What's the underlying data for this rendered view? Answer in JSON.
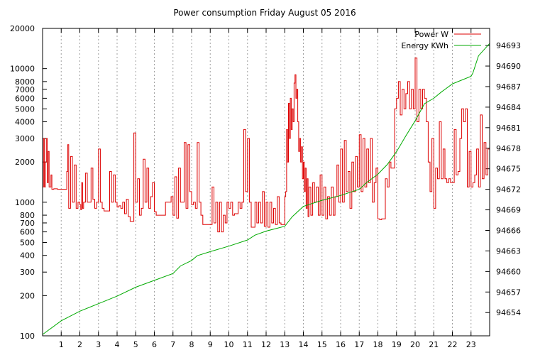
{
  "chart_data": {
    "type": "line",
    "title": "Power consumption Friday August 05 2016",
    "xlabel": "",
    "ylabel": "",
    "y2label": "",
    "grid": true,
    "legend_placement": "top-right",
    "x_range": [
      0,
      24
    ],
    "x_ticks": [
      1,
      2,
      3,
      4,
      5,
      6,
      7,
      8,
      9,
      10,
      11,
      12,
      13,
      14,
      15,
      16,
      17,
      18,
      19,
      20,
      21,
      22,
      23
    ],
    "y_left": {
      "scale": "log",
      "range": [
        100,
        20000
      ],
      "ticks": [
        100,
        200,
        300,
        400,
        500,
        600,
        700,
        800,
        1000,
        2000,
        3000,
        4000,
        5000,
        6000,
        7000,
        8000,
        10000,
        20000
      ]
    },
    "y_right": {
      "scale": "linear",
      "range": [
        94650.6,
        94695.5
      ],
      "ticks": [
        94654,
        94657,
        94660,
        94663,
        94666,
        94669,
        94672,
        94675,
        94678,
        94681,
        94684,
        94687,
        94690,
        94693
      ]
    },
    "series": [
      {
        "name": "Power W",
        "axis": "left",
        "color": "#dd0000",
        "points": [
          [
            0.0,
            1300
          ],
          [
            0.05,
            3000
          ],
          [
            0.1,
            1300
          ],
          [
            0.15,
            2000
          ],
          [
            0.2,
            3000
          ],
          [
            0.25,
            1400
          ],
          [
            0.3,
            2400
          ],
          [
            0.35,
            1300
          ],
          [
            0.4,
            1300
          ],
          [
            0.45,
            1600
          ],
          [
            0.5,
            1250
          ],
          [
            0.6,
            1260
          ],
          [
            0.8,
            1250
          ],
          [
            1.0,
            1250
          ],
          [
            1.2,
            1250
          ],
          [
            1.3,
            1700
          ],
          [
            1.35,
            2700
          ],
          [
            1.4,
            900
          ],
          [
            1.5,
            2200
          ],
          [
            1.6,
            1000
          ],
          [
            1.7,
            1900
          ],
          [
            1.8,
            900
          ],
          [
            1.9,
            1000
          ],
          [
            2.0,
            960
          ],
          [
            2.05,
            880
          ],
          [
            2.1,
            1400
          ],
          [
            2.15,
            900
          ],
          [
            2.2,
            1000
          ],
          [
            2.3,
            1650
          ],
          [
            2.4,
            1000
          ],
          [
            2.5,
            1000
          ],
          [
            2.6,
            1800
          ],
          [
            2.7,
            1050
          ],
          [
            2.8,
            900
          ],
          [
            2.9,
            1000
          ],
          [
            3.0,
            2500
          ],
          [
            3.1,
            1000
          ],
          [
            3.2,
            900
          ],
          [
            3.3,
            860
          ],
          [
            3.5,
            860
          ],
          [
            3.6,
            1700
          ],
          [
            3.7,
            1000
          ],
          [
            3.8,
            1600
          ],
          [
            3.9,
            1000
          ],
          [
            4.0,
            920
          ],
          [
            4.1,
            940
          ],
          [
            4.2,
            900
          ],
          [
            4.3,
            1000
          ],
          [
            4.4,
            820
          ],
          [
            4.5,
            1050
          ],
          [
            4.6,
            780
          ],
          [
            4.7,
            720
          ],
          [
            4.8,
            720
          ],
          [
            4.9,
            3300
          ],
          [
            5.0,
            1000
          ],
          [
            5.1,
            1500
          ],
          [
            5.2,
            800
          ],
          [
            5.3,
            900
          ],
          [
            5.4,
            2100
          ],
          [
            5.5,
            1000
          ],
          [
            5.6,
            1800
          ],
          [
            5.7,
            900
          ],
          [
            5.8,
            1100
          ],
          [
            5.9,
            1400
          ],
          [
            6.0,
            850
          ],
          [
            6.1,
            800
          ],
          [
            6.2,
            800
          ],
          [
            6.4,
            800
          ],
          [
            6.6,
            1000
          ],
          [
            6.8,
            1000
          ],
          [
            6.9,
            1100
          ],
          [
            7.0,
            800
          ],
          [
            7.1,
            1550
          ],
          [
            7.2,
            760
          ],
          [
            7.3,
            1800
          ],
          [
            7.4,
            1000
          ],
          [
            7.5,
            1000
          ],
          [
            7.6,
            2800
          ],
          [
            7.7,
            900
          ],
          [
            7.8,
            2700
          ],
          [
            7.9,
            1200
          ],
          [
            8.0,
            960
          ],
          [
            8.1,
            1000
          ],
          [
            8.2,
            900
          ],
          [
            8.3,
            2800
          ],
          [
            8.4,
            1000
          ],
          [
            8.5,
            800
          ],
          [
            8.6,
            680
          ],
          [
            8.7,
            680
          ],
          [
            8.8,
            680
          ],
          [
            9.0,
            680
          ],
          [
            9.1,
            1300
          ],
          [
            9.2,
            700
          ],
          [
            9.3,
            1000
          ],
          [
            9.4,
            600
          ],
          [
            9.5,
            1000
          ],
          [
            9.6,
            600
          ],
          [
            9.7,
            800
          ],
          [
            9.8,
            700
          ],
          [
            9.9,
            1000
          ],
          [
            10.0,
            900
          ],
          [
            10.1,
            1000
          ],
          [
            10.2,
            800
          ],
          [
            10.3,
            820
          ],
          [
            10.4,
            820
          ],
          [
            10.5,
            1000
          ],
          [
            10.6,
            900
          ],
          [
            10.7,
            1000
          ],
          [
            10.8,
            3500
          ],
          [
            10.9,
            1200
          ],
          [
            11.0,
            3000
          ],
          [
            11.1,
            1000
          ],
          [
            11.2,
            650
          ],
          [
            11.3,
            650
          ],
          [
            11.4,
            1000
          ],
          [
            11.5,
            700
          ],
          [
            11.6,
            1000
          ],
          [
            11.7,
            700
          ],
          [
            11.8,
            1200
          ],
          [
            11.9,
            660
          ],
          [
            12.0,
            1000
          ],
          [
            12.1,
            650
          ],
          [
            12.2,
            1000
          ],
          [
            12.3,
            700
          ],
          [
            12.4,
            900
          ],
          [
            12.5,
            680
          ],
          [
            12.6,
            1100
          ],
          [
            12.7,
            700
          ],
          [
            12.8,
            680
          ],
          [
            12.9,
            680
          ],
          [
            13.0,
            1100
          ],
          [
            13.05,
            1200
          ],
          [
            13.1,
            3500
          ],
          [
            13.15,
            2000
          ],
          [
            13.2,
            5500
          ],
          [
            13.25,
            3000
          ],
          [
            13.3,
            6000
          ],
          [
            13.35,
            3500
          ],
          [
            13.4,
            5000
          ],
          [
            13.45,
            4000
          ],
          [
            13.5,
            7800
          ],
          [
            13.55,
            9000
          ],
          [
            13.6,
            6000
          ],
          [
            13.65,
            7000
          ],
          [
            13.7,
            4000
          ],
          [
            13.75,
            2400
          ],
          [
            13.8,
            3000
          ],
          [
            13.85,
            2000
          ],
          [
            13.9,
            2600
          ],
          [
            13.95,
            1500
          ],
          [
            14.0,
            2000
          ],
          [
            14.05,
            1200
          ],
          [
            14.1,
            1800
          ],
          [
            14.15,
            900
          ],
          [
            14.2,
            1500
          ],
          [
            14.25,
            780
          ],
          [
            14.3,
            1300
          ],
          [
            14.4,
            800
          ],
          [
            14.5,
            1400
          ],
          [
            14.6,
            1000
          ],
          [
            14.7,
            1300
          ],
          [
            14.8,
            800
          ],
          [
            14.9,
            1600
          ],
          [
            15.0,
            800
          ],
          [
            15.1,
            1300
          ],
          [
            15.2,
            750
          ],
          [
            15.3,
            1100
          ],
          [
            15.4,
            800
          ],
          [
            15.5,
            1300
          ],
          [
            15.6,
            800
          ],
          [
            15.7,
            1100
          ],
          [
            15.8,
            1900
          ],
          [
            15.9,
            1000
          ],
          [
            16.0,
            2500
          ],
          [
            16.1,
            1000
          ],
          [
            16.2,
            2900
          ],
          [
            16.3,
            1200
          ],
          [
            16.4,
            1700
          ],
          [
            16.5,
            900
          ],
          [
            16.6,
            2000
          ],
          [
            16.7,
            1200
          ],
          [
            16.8,
            2200
          ],
          [
            16.9,
            1300
          ],
          [
            17.0,
            3200
          ],
          [
            17.1,
            1200
          ],
          [
            17.2,
            3000
          ],
          [
            17.3,
            1300
          ],
          [
            17.4,
            2500
          ],
          [
            17.5,
            1400
          ],
          [
            17.6,
            3000
          ],
          [
            17.7,
            1000
          ],
          [
            17.8,
            1400
          ],
          [
            17.9,
            1800
          ],
          [
            18.0,
            750
          ],
          [
            18.1,
            740
          ],
          [
            18.2,
            750
          ],
          [
            18.4,
            1500
          ],
          [
            18.5,
            1300
          ],
          [
            18.6,
            2000
          ],
          [
            18.7,
            1800
          ],
          [
            18.9,
            5000
          ],
          [
            19.0,
            6000
          ],
          [
            19.1,
            8000
          ],
          [
            19.2,
            4500
          ],
          [
            19.3,
            7000
          ],
          [
            19.4,
            5000
          ],
          [
            19.5,
            6500
          ],
          [
            19.6,
            8000
          ],
          [
            19.7,
            5000
          ],
          [
            19.8,
            7000
          ],
          [
            19.9,
            5000
          ],
          [
            20.0,
            12000
          ],
          [
            20.1,
            4000
          ],
          [
            20.2,
            7000
          ],
          [
            20.3,
            5000
          ],
          [
            20.4,
            7000
          ],
          [
            20.5,
            6000
          ],
          [
            20.6,
            4000
          ],
          [
            20.7,
            2000
          ],
          [
            20.8,
            1200
          ],
          [
            20.9,
            3000
          ],
          [
            21.0,
            900
          ],
          [
            21.1,
            1800
          ],
          [
            21.2,
            1500
          ],
          [
            21.3,
            4000
          ],
          [
            21.4,
            1500
          ],
          [
            21.5,
            2500
          ],
          [
            21.6,
            1500
          ],
          [
            21.7,
            1400
          ],
          [
            21.8,
            1500
          ],
          [
            21.9,
            1400
          ],
          [
            22.0,
            1400
          ],
          [
            22.1,
            3500
          ],
          [
            22.2,
            1600
          ],
          [
            22.3,
            1700
          ],
          [
            22.4,
            3000
          ],
          [
            22.5,
            5000
          ],
          [
            22.6,
            4000
          ],
          [
            22.7,
            5000
          ],
          [
            22.8,
            1300
          ],
          [
            22.9,
            2400
          ],
          [
            23.0,
            1300
          ],
          [
            23.1,
            1400
          ],
          [
            23.2,
            1600
          ],
          [
            23.3,
            2500
          ],
          [
            23.4,
            1300
          ],
          [
            23.5,
            4500
          ],
          [
            23.6,
            1500
          ],
          [
            23.7,
            2800
          ],
          [
            23.8,
            1600
          ],
          [
            23.9,
            2500
          ],
          [
            24.0,
            1500
          ]
        ]
      },
      {
        "name": "Energy KWh",
        "axis": "right",
        "color": "#00aa00",
        "points": [
          [
            0,
            94650.8
          ],
          [
            1,
            94652.8
          ],
          [
            2,
            94654.2
          ],
          [
            3,
            94655.3
          ],
          [
            4,
            94656.4
          ],
          [
            5,
            94657.7
          ],
          [
            6,
            94658.7
          ],
          [
            7,
            94659.7
          ],
          [
            7.4,
            94660.8
          ],
          [
            8,
            94661.6
          ],
          [
            8.3,
            94662.3
          ],
          [
            9,
            94662.9
          ],
          [
            10,
            94663.7
          ],
          [
            11,
            94664.6
          ],
          [
            11.4,
            94665.3
          ],
          [
            12,
            94665.9
          ],
          [
            13,
            94666.6
          ],
          [
            13.4,
            94668.0
          ],
          [
            14,
            94669.5
          ],
          [
            15,
            94670.4
          ],
          [
            16,
            94671.1
          ],
          [
            17,
            94672.0
          ],
          [
            17.4,
            94673.0
          ],
          [
            18,
            94674.2
          ],
          [
            18.5,
            94675.6
          ],
          [
            19,
            94677.5
          ],
          [
            19.5,
            94679.8
          ],
          [
            20,
            94682.0
          ],
          [
            20.5,
            94684.5
          ],
          [
            21,
            94685.3
          ],
          [
            21.4,
            94686.2
          ],
          [
            22,
            94687.4
          ],
          [
            23,
            94688.5
          ],
          [
            23.1,
            94689.0
          ],
          [
            23.4,
            94691.5
          ],
          [
            24,
            94693.3
          ]
        ]
      }
    ]
  }
}
